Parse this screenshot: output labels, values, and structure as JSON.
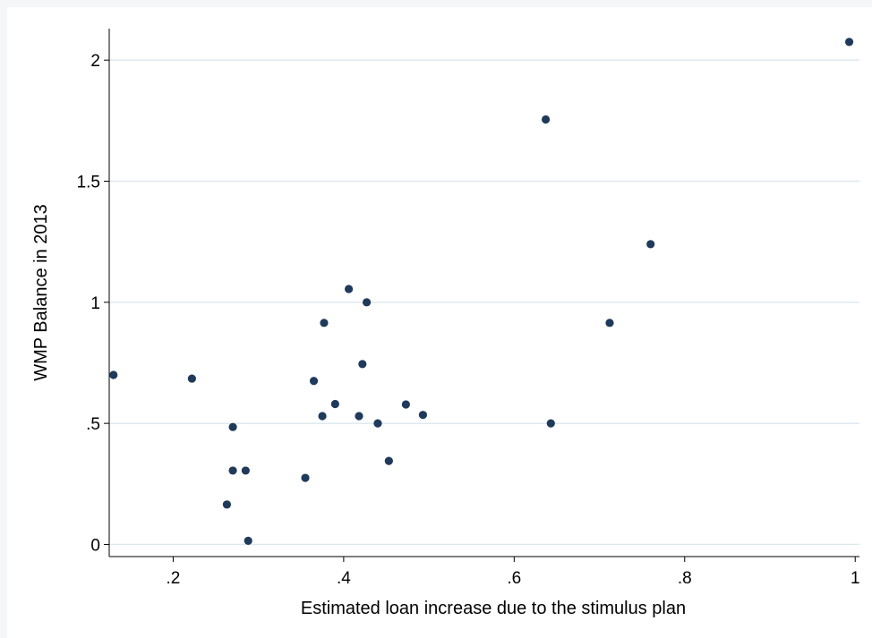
{
  "chart_data": {
    "type": "scatter",
    "title": "",
    "xlabel": "Estimated loan increase due to the stimulus plan",
    "ylabel": "WMP Balance in 2013",
    "xlim": [
      0.125,
      1.005
    ],
    "ylim": [
      -0.05,
      2.13
    ],
    "xticks": [
      0.2,
      0.4,
      0.6,
      0.8,
      1
    ],
    "xtick_labels": [
      ".2",
      ".4",
      ".6",
      ".8",
      "1"
    ],
    "yticks": [
      0,
      0.5,
      1,
      1.5,
      2
    ],
    "ytick_labels": [
      "0",
      ".5",
      "1",
      "1.5",
      "2"
    ],
    "grid": "horizontal",
    "marker_color": "#1f3a5a",
    "grid_color": "#dde7ee",
    "points": [
      {
        "x": 0.13,
        "y": 0.7
      },
      {
        "x": 0.222,
        "y": 0.685
      },
      {
        "x": 0.27,
        "y": 0.485
      },
      {
        "x": 0.27,
        "y": 0.305
      },
      {
        "x": 0.285,
        "y": 0.305
      },
      {
        "x": 0.263,
        "y": 0.165
      },
      {
        "x": 0.288,
        "y": 0.015
      },
      {
        "x": 0.355,
        "y": 0.275
      },
      {
        "x": 0.365,
        "y": 0.675
      },
      {
        "x": 0.375,
        "y": 0.53
      },
      {
        "x": 0.377,
        "y": 0.915
      },
      {
        "x": 0.39,
        "y": 0.58
      },
      {
        "x": 0.406,
        "y": 1.055
      },
      {
        "x": 0.418,
        "y": 0.53
      },
      {
        "x": 0.422,
        "y": 0.745
      },
      {
        "x": 0.427,
        "y": 1.0
      },
      {
        "x": 0.44,
        "y": 0.5
      },
      {
        "x": 0.453,
        "y": 0.345
      },
      {
        "x": 0.473,
        "y": 0.578
      },
      {
        "x": 0.493,
        "y": 0.535
      },
      {
        "x": 0.637,
        "y": 1.755
      },
      {
        "x": 0.643,
        "y": 0.5
      },
      {
        "x": 0.712,
        "y": 0.915
      },
      {
        "x": 0.76,
        "y": 1.24
      },
      {
        "x": 0.993,
        "y": 2.075
      }
    ]
  }
}
